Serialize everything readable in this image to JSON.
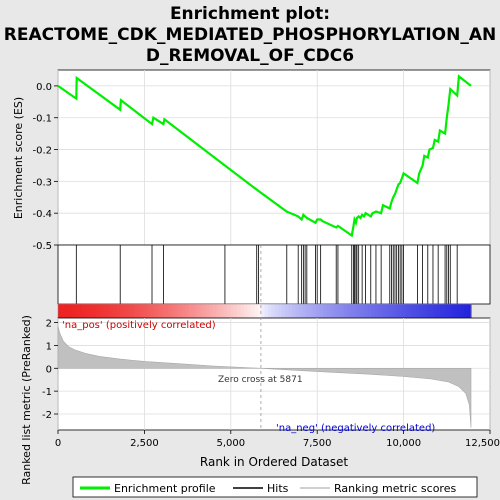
{
  "chart_data": {
    "type": "line",
    "title": "Enrichment plot: REACTOME_CDK_MEDIATED_PHOSPHORYLATION_AND_REMOVAL_OF_CDC6",
    "title_lines": [
      "Enrichment plot:",
      "REACTOME_CDK_MEDIATED_PHOSPHORYLATION_AN",
      "D_REMOVAL_OF_CDC6"
    ],
    "top_panel": {
      "ylabel": "Enrichment score (ES)",
      "ylim": [
        -0.5,
        0.05
      ],
      "yticks": [
        0.0,
        -0.1,
        -0.2,
        -0.3,
        -0.4,
        -0.5
      ],
      "ytick_labels": [
        "0.0",
        "-0.1",
        "-0.2",
        "-0.3",
        "-0.4",
        "-0.5"
      ],
      "grid": true,
      "series_color": "#00ee00",
      "es_profile": {
        "x": [
          0,
          530,
          540,
          1800,
          1820,
          2720,
          2760,
          3050,
          3080,
          4830,
          5800,
          6620,
          6950,
          7050,
          7100,
          7150,
          7200,
          7450,
          7500,
          7600,
          7650,
          8050,
          8100,
          8500,
          8550,
          8580,
          8620,
          8650,
          8700,
          8750,
          8800,
          8850,
          8900,
          9050,
          9100,
          9200,
          9350,
          9400,
          9600,
          9650,
          9700,
          9750,
          9800,
          9850,
          9900,
          9950,
          10000,
          10400,
          10450,
          10550,
          10600,
          10700,
          10750,
          10850,
          10900,
          11000,
          11050,
          11200,
          11250,
          11300,
          11350,
          11550,
          11600,
          11950
        ],
        "y": [
          0.0,
          -0.04,
          0.025,
          -0.075,
          -0.045,
          -0.12,
          -0.1,
          -0.12,
          -0.105,
          -0.25,
          -0.33,
          -0.395,
          -0.41,
          -0.42,
          -0.405,
          -0.41,
          -0.415,
          -0.43,
          -0.42,
          -0.42,
          -0.425,
          -0.445,
          -0.44,
          -0.47,
          -0.44,
          -0.42,
          -0.43,
          -0.415,
          -0.41,
          -0.415,
          -0.405,
          -0.41,
          -0.4,
          -0.41,
          -0.4,
          -0.395,
          -0.4,
          -0.375,
          -0.385,
          -0.365,
          -0.35,
          -0.34,
          -0.325,
          -0.31,
          -0.305,
          -0.29,
          -0.275,
          -0.305,
          -0.275,
          -0.25,
          -0.22,
          -0.225,
          -0.2,
          -0.195,
          -0.17,
          -0.175,
          -0.14,
          -0.15,
          -0.1,
          -0.06,
          -0.01,
          -0.03,
          0.03,
          0.0
        ]
      }
    },
    "hits": [
      530,
      1800,
      2720,
      3050,
      4830,
      5750,
      5800,
      6620,
      6950,
      7050,
      7100,
      7150,
      7200,
      7450,
      7500,
      7600,
      8050,
      8100,
      8500,
      8550,
      8580,
      8620,
      8650,
      8700,
      8800,
      8900,
      9050,
      9200,
      9350,
      9600,
      9650,
      9700,
      9750,
      9800,
      9850,
      9900,
      9950,
      10000,
      10400,
      10550,
      10700,
      10850,
      11000,
      11200,
      11250,
      11300,
      11350,
      11550
    ],
    "heatmap_bar": {
      "label_pos": "'na_pos' (positively correlated)",
      "label_neg": "'na_neg' (negatively correlated)",
      "pos_color": "#ee2222",
      "neg_color": "#2222dd"
    },
    "bottom_panel": {
      "xlabel": "Rank in Ordered Dataset",
      "ylabel": "Ranked list metric (PreRanked)",
      "ylim": [
        -2.7,
        2.2
      ],
      "yticks": [
        2,
        1,
        0,
        -1,
        -2
      ],
      "ytick_labels": [
        "2",
        "1",
        "0",
        "-1",
        "-2"
      ],
      "zero_cross_label": "Zero cross at 5871",
      "zero_cross": 5871,
      "metric_color": "#c0c0c0",
      "metric_curve": {
        "x": [
          0,
          50,
          150,
          300,
          500,
          800,
          1200,
          1800,
          2500,
          3500,
          4500,
          5871,
          7000,
          8000,
          9000,
          10000,
          10800,
          11300,
          11600,
          11800,
          11900,
          11950
        ],
        "y": [
          1.85,
          1.55,
          1.2,
          0.95,
          0.8,
          0.65,
          0.52,
          0.4,
          0.3,
          0.2,
          0.1,
          0.0,
          -0.1,
          -0.18,
          -0.26,
          -0.36,
          -0.47,
          -0.6,
          -0.8,
          -1.1,
          -1.6,
          -2.6
        ]
      }
    },
    "xlim": [
      0,
      12500
    ],
    "xticks": [
      0,
      2500,
      5000,
      7500,
      10000,
      12500
    ],
    "xtick_labels": [
      "0",
      "2,500",
      "5,000",
      "7,500",
      "10,000",
      "12,500"
    ],
    "dataset_size": 11950,
    "legend": {
      "placement": "bottom",
      "items": [
        {
          "label": "Enrichment profile",
          "color": "#00ee00"
        },
        {
          "label": "Hits",
          "color": "#000000"
        },
        {
          "label": "Ranking metric scores",
          "color": "#c0c0c0"
        }
      ]
    }
  }
}
